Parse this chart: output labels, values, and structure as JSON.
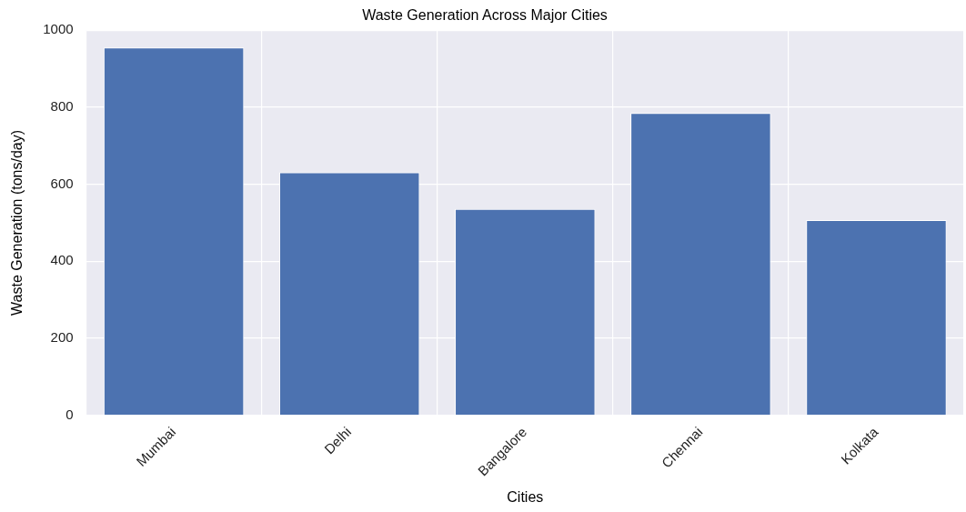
{
  "chart_data": {
    "type": "bar",
    "title": "Waste Generation Across Major Cities",
    "xlabel": "Cities",
    "ylabel": "Waste Generation (tons/day)",
    "categories": [
      "Mumbai",
      "Delhi",
      "Bangalore",
      "Chennai",
      "Kolkata"
    ],
    "values": [
      955,
      631,
      536,
      785,
      507
    ],
    "color": "#4c72b0",
    "ylim": [
      0,
      1000
    ],
    "yticks": [
      0,
      200,
      400,
      600,
      800,
      1000
    ],
    "grid": true
  }
}
